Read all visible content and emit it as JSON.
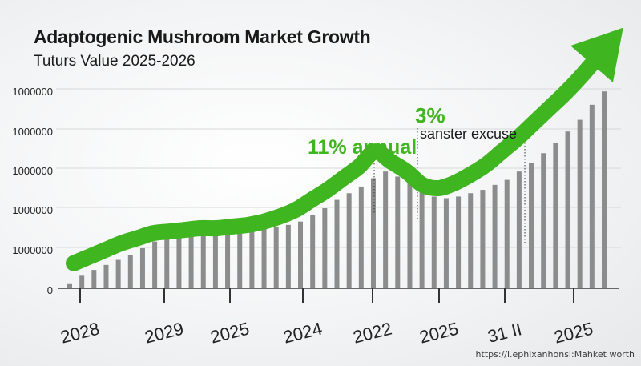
{
  "chart_data": {
    "type": "bar",
    "title": "Adaptogenic Mushroom Market Growth",
    "subtitle": "Tuturs Value 2025-2026",
    "ytick_labels": [
      "1000000",
      "1000000",
      "1000000",
      "1000000",
      "1000000",
      "0"
    ],
    "xtick_labels": [
      "2028",
      "2029",
      "2025",
      "2024",
      "2022",
      "2025",
      "31 II",
      "2025"
    ],
    "values": [
      3,
      8,
      11,
      14,
      17,
      20,
      24,
      28,
      32,
      34,
      35,
      36,
      36,
      36,
      36,
      36,
      36,
      37,
      38,
      40,
      44,
      48,
      53,
      57,
      61,
      66,
      70,
      67,
      63,
      58,
      55,
      54,
      55,
      57,
      59,
      62,
      65,
      70,
      75,
      81,
      87,
      94,
      101,
      110,
      118
    ],
    "ylim": [
      0,
      120
    ],
    "trend_line": [
      15,
      19,
      23,
      27,
      30,
      33,
      34,
      35,
      36,
      36,
      37,
      38,
      40,
      43,
      47,
      53,
      59,
      66,
      73,
      82,
      76,
      70,
      62,
      60,
      63,
      68,
      74,
      82,
      90,
      99,
      108,
      117,
      127,
      138
    ],
    "annotations": [
      {
        "text": "11% annual",
        "color": "#3fb51f"
      },
      {
        "text": "3%",
        "color": "#3fb51f"
      },
      {
        "text": "sanster excuse",
        "color": "#1a1a1a"
      }
    ],
    "accent_color": "#3fb51f",
    "bar_color": "#8c8c8c"
  },
  "source_note": "https://l.ephixanhonsi:Mahket worth"
}
